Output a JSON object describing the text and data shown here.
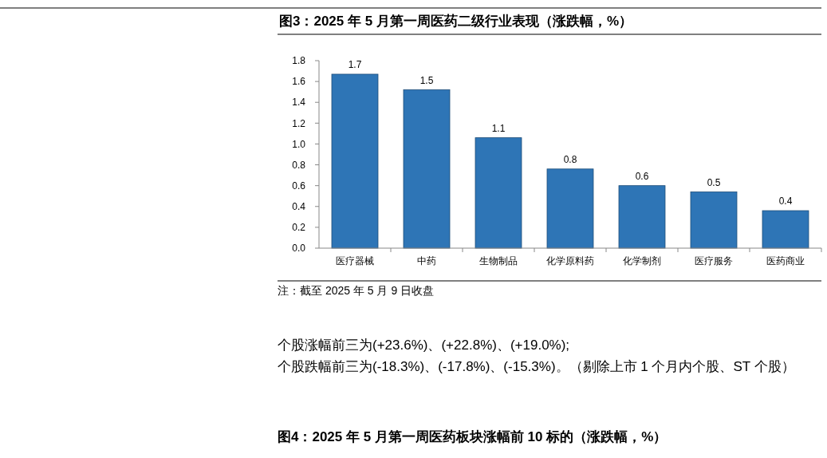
{
  "chart_data": {
    "type": "bar",
    "title": "图3：2025 年 5 月第一周医药二级行业表现（涨跌幅，%）",
    "categories": [
      "医疗器械",
      "中药",
      "生物制品",
      "化学原料药",
      "化学制剂",
      "医疗服务",
      "医药商业"
    ],
    "values": [
      1.67,
      1.52,
      1.06,
      0.76,
      0.6,
      0.54,
      0.36
    ],
    "value_labels": [
      "1.7",
      "1.5",
      "1.1",
      "0.8",
      "0.6",
      "0.5",
      "0.4"
    ],
    "color": "#2e75b6",
    "ylim": [
      0,
      1.8
    ],
    "yticks": [
      {
        "value": 0,
        "label": "0.0"
      },
      {
        "value": 0.2,
        "label": "0.2"
      },
      {
        "value": 0.4,
        "label": "0.4"
      },
      {
        "value": 0.6,
        "label": "0.6"
      },
      {
        "value": 0.8,
        "label": "0.8"
      },
      {
        "value": 1.0,
        "label": "1.0"
      },
      {
        "value": 1.2,
        "label": "1.2"
      },
      {
        "value": 1.4,
        "label": "1.4"
      },
      {
        "value": 1.6,
        "label": "1.6"
      },
      {
        "value": 1.8,
        "label": "1.8"
      }
    ],
    "grid": false,
    "annotations": [
      "注：截至 2025 年 5 月 9 日收盘",
      "个股涨幅前三为(+23.6%)、(+22.8%)、(+19.0%);",
      "个股跌幅前三为(-18.3%)、(-17.8%)、(-15.3%)。（剔除上市 1 个月内个股、ST 个股）",
      "图4：2025 年 5 月第一周医药板块涨幅前 10 标的（涨跌幅，%）"
    ]
  }
}
